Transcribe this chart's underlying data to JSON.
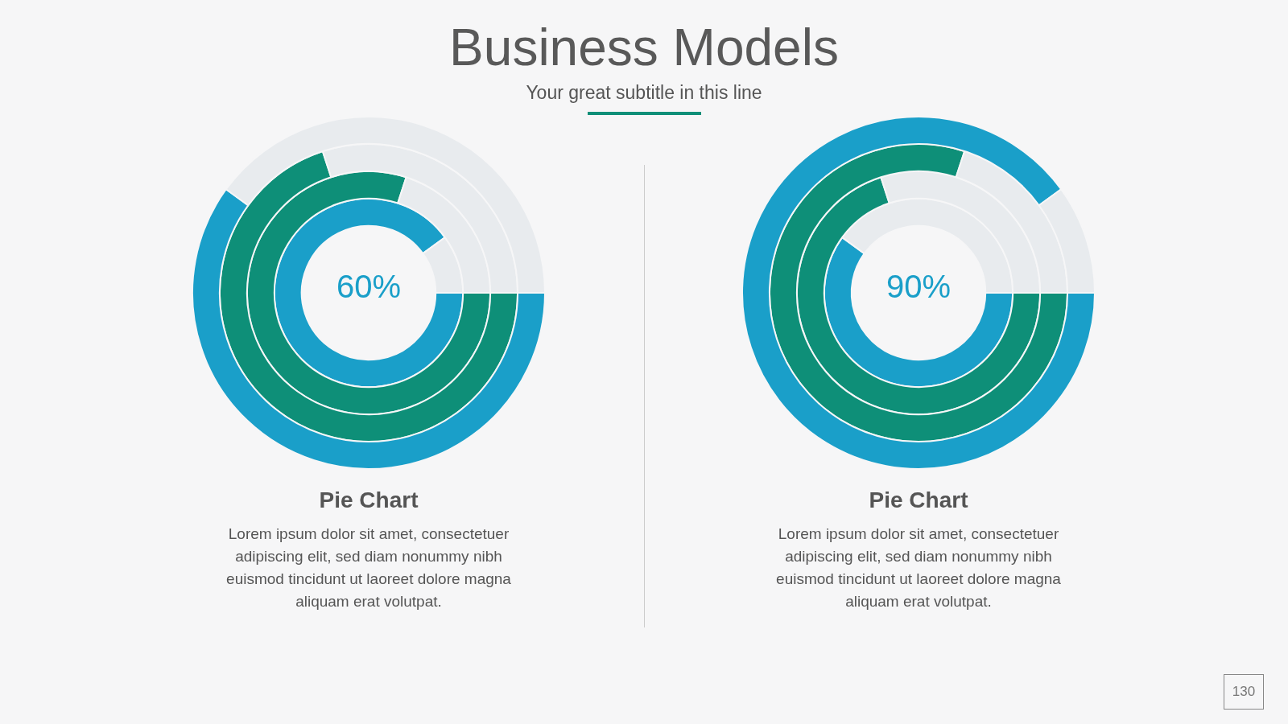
{
  "chart_data": [
    {
      "type": "other",
      "title": "Business Models",
      "subtitle": "Your great subtitle in this line",
      "annotations": [
        "130"
      ]
    },
    {
      "type": "donut",
      "title": "Pie Chart",
      "categories": [
        null,
        null
      ],
      "series": [
        {
          "colors": [
            "#1a9fc9",
            "#e8ebee"
          ],
          "values": [
            90,
            10
          ]
        },
        {
          "colors": [
            "#0e8f78",
            "#e8ebee"
          ],
          "values": [
            80,
            20
          ]
        },
        {
          "colors": [
            "#0e8f78",
            "#e8ebee"
          ],
          "values": [
            70,
            30
          ]
        },
        {
          "colors": [
            "#1a9fc9",
            "#e8ebee"
          ],
          "values": [
            60,
            40
          ]
        }
      ],
      "annotations": [
        "60%",
        "Lorem ipsum dolor sit amet, consectetuer adipiscing elit, sed diam nonummy nibh euismod tincidunt ut laoreet dolore magna aliquam erat volutpat."
      ]
    },
    {
      "type": "donut",
      "title": "Pie Chart",
      "categories": [
        null,
        null
      ],
      "series": [
        {
          "colors": [
            "#1a9fc9",
            "#e8ebee"
          ],
          "values": [
            60,
            40
          ]
        },
        {
          "colors": [
            "#0e8f78",
            "#e8ebee"
          ],
          "values": [
            70,
            30
          ]
        },
        {
          "colors": [
            "#0e8f78",
            "#e8ebee"
          ],
          "values": [
            80,
            20
          ]
        },
        {
          "colors": [
            "#1a9fc9",
            "#e8ebee"
          ],
          "values": [
            90,
            10
          ]
        }
      ],
      "annotations": [
        "90%",
        "Lorem ipsum dolor sit amet, consectetuer adipiscing elit, sed diam nonummy nibh euismod tincidunt ut laoreet dolore magna aliquam erat volutpat."
      ]
    }
  ]
}
